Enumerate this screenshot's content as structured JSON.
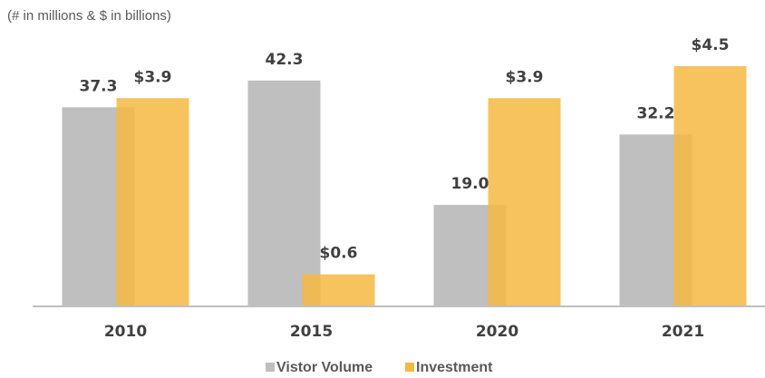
{
  "chart_data": {
    "type": "bar",
    "subtitle": "(# in millions & $ in billions)",
    "categories": [
      "2010",
      "2015",
      "2020",
      "2021"
    ],
    "series": [
      {
        "name": "Vistor Volume",
        "color": "#bfbfbf",
        "values": [
          37.3,
          42.3,
          19.0,
          32.2
        ],
        "value_labels": [
          "37.3",
          "42.3",
          "19.0",
          "32.2"
        ]
      },
      {
        "name": "Investment",
        "color": "#f5b942",
        "axis": "y2",
        "values": [
          3.9,
          0.6,
          3.9,
          4.5
        ],
        "value_labels": [
          "$3.9",
          "$0.6",
          "$3.9",
          "$4.5"
        ]
      }
    ],
    "ylim": [
      0,
      50
    ],
    "y2lim": [
      0,
      5
    ],
    "legend": "bottom"
  }
}
